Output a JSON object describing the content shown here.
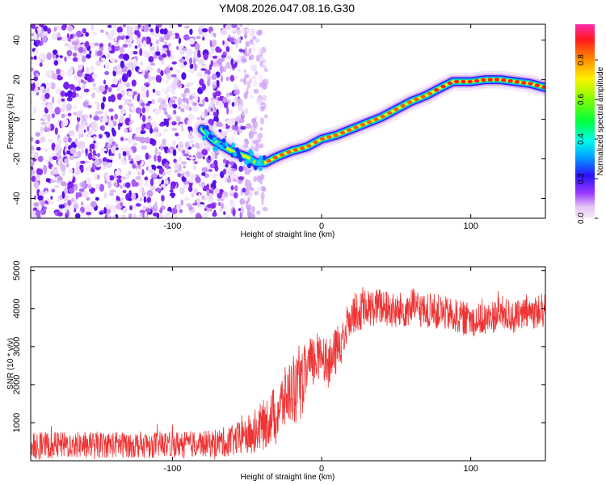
{
  "title": "YM08.2026.047.08.16.G30",
  "chart_data": [
    {
      "type": "heatmap",
      "name": "spectrogram",
      "xlabel": "Height of straight line (km)",
      "ylabel": "Frequency (Hz)",
      "xlim": [
        -195,
        150
      ],
      "ylim": [
        -50,
        48
      ],
      "xticks": [
        -100,
        0,
        100
      ],
      "yticks": [
        -40,
        -20,
        0,
        20,
        40
      ],
      "noise_region_x": [
        -195,
        -45
      ],
      "ridge": {
        "x": [
          -80,
          -72,
          -65,
          -58,
          -50,
          -44,
          -38,
          -30,
          -20,
          -10,
          0,
          10,
          20,
          30,
          40,
          50,
          60,
          70,
          80,
          88,
          100,
          110,
          120,
          130,
          140,
          150
        ],
        "y": [
          -5,
          -11,
          -14,
          -17,
          -19,
          -22,
          -22,
          -19,
          -16,
          -14,
          -10,
          -8,
          -5,
          -2,
          1,
          5,
          9,
          12,
          16,
          19,
          19,
          20,
          20,
          19,
          18,
          16
        ]
      },
      "colorbar": {
        "label": "Normalized spectral amplitude",
        "range": [
          0,
          0.98
        ],
        "ticks": [
          "0.0",
          "0.2",
          "0.4",
          "0.6",
          "0.8"
        ]
      }
    },
    {
      "type": "line",
      "name": "snr",
      "xlabel": "Height of straight line (km)",
      "ylabel": "SNR (10 * v/v)",
      "xlim": [
        -195,
        150
      ],
      "ylim": [
        0,
        5100
      ],
      "xticks": [
        -100,
        0,
        100
      ],
      "yticks": [
        1000,
        2000,
        3000,
        4000,
        5000
      ],
      "color": "#ee3333",
      "envelope": {
        "x": [
          -195,
          -150,
          -100,
          -75,
          -60,
          -50,
          -40,
          -30,
          -20,
          -15,
          -10,
          -5,
          0,
          5,
          10,
          15,
          20,
          25,
          30,
          40,
          50,
          60,
          70,
          80,
          90,
          100,
          110,
          120,
          130,
          140,
          150
        ],
        "mean": [
          400,
          420,
          430,
          450,
          520,
          650,
          900,
          1300,
          1900,
          1800,
          2400,
          2600,
          2900,
          2500,
          2900,
          3300,
          3900,
          3900,
          4000,
          4050,
          3900,
          4050,
          3950,
          3900,
          3800,
          3700,
          3700,
          3900,
          3750,
          3900,
          3950
        ],
        "amp": [
          350,
          350,
          350,
          350,
          420,
          520,
          650,
          750,
          900,
          900,
          800,
          700,
          650,
          650,
          650,
          600,
          550,
          500,
          500,
          500,
          480,
          500,
          480,
          450,
          450,
          450,
          450,
          450,
          450,
          450,
          450
        ]
      }
    }
  ]
}
